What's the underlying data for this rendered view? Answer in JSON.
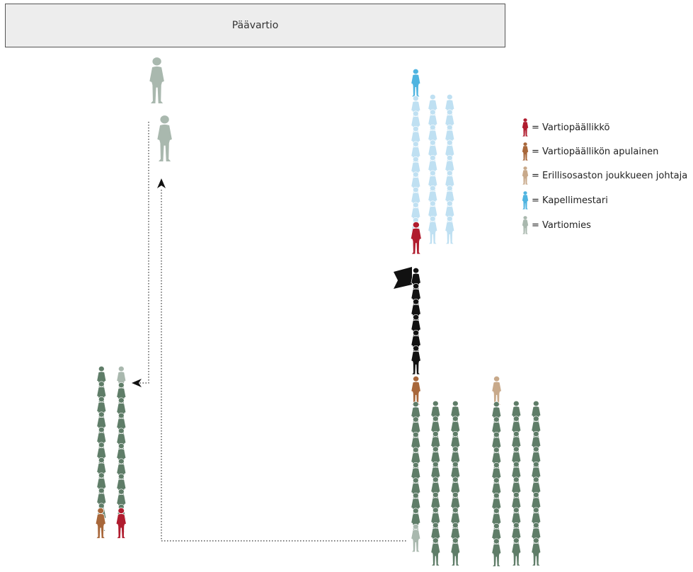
{
  "header": {
    "title": "Päävartio"
  },
  "legend": {
    "items": [
      {
        "role": "vartiopaallikko",
        "label": "= Vartiopäällikkö",
        "color": "#b01c2e"
      },
      {
        "role": "apulainen",
        "label": "= Vartiopäällikön apulainen",
        "color": "#a8673a"
      },
      {
        "role": "erillisosasto",
        "label": "= Erillisosaston joukkueen johtaja",
        "color": "#c8a98a"
      },
      {
        "role": "kapellimestari",
        "label": "= Kapellimestari",
        "color": "#4fb4e0"
      },
      {
        "role": "vartiomies",
        "label": "= Vartiomies",
        "color": "#a9b8ae"
      }
    ]
  },
  "colors": {
    "soldier_dark_green": "#5f7d68",
    "band_light_blue": "#bfe0f2",
    "band_leader": "#4fb4e0",
    "flag_party": "#111111",
    "commander": "#b01c2e",
    "assistant": "#a8673a",
    "platoon_leader": "#c8a98a",
    "sentry": "#a9b8ae",
    "path_line": "#333333"
  }
}
